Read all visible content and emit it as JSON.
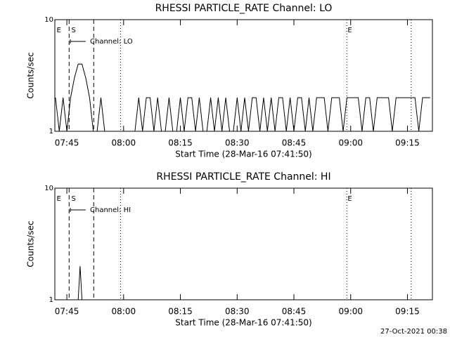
{
  "chart_data": [
    {
      "type": "line",
      "title": "RHESSI PARTICLE_RATE Channel: LO",
      "xlabel": "Start Time (28-Mar-16 07:41:50)",
      "ylabel": "Counts/sec",
      "log_y": true,
      "ylim": [
        1,
        10
      ],
      "yticks": [
        1,
        10
      ],
      "xlim": [
        461.83,
        561.6
      ],
      "xticks": [
        {
          "value": 465,
          "label": "07:45"
        },
        {
          "value": 480,
          "label": "08:00"
        },
        {
          "value": 495,
          "label": "08:15"
        },
        {
          "value": 510,
          "label": "08:30"
        },
        {
          "value": 525,
          "label": "08:45"
        },
        {
          "value": 540,
          "label": "09:00"
        },
        {
          "value": 555,
          "label": "09:15"
        }
      ],
      "legend": "upper left",
      "vlines": [
        {
          "x": 465.6,
          "style": "dashed"
        },
        {
          "x": 472.1,
          "style": "dashed"
        },
        {
          "x": 479.2,
          "style": "dotted"
        },
        {
          "x": 538.97,
          "style": "dotted"
        },
        {
          "x": 555.97,
          "style": "dotted"
        }
      ],
      "markers": [
        {
          "label": "E",
          "x": 462.3
        },
        {
          "label": "S",
          "x": 466.2
        },
        {
          "label": "E",
          "x": 539.2
        }
      ],
      "series": [
        {
          "name": "Channel: LO",
          "color": "#000000",
          "x": [
            462,
            463,
            464,
            465,
            466,
            467,
            468,
            469,
            470,
            471,
            472,
            473,
            474,
            475,
            476,
            477,
            478,
            479,
            480,
            481,
            482,
            483,
            484,
            485,
            486,
            487,
            488,
            489,
            490,
            491,
            492,
            493,
            494,
            495,
            496,
            497,
            498,
            499,
            500,
            501,
            502,
            503,
            504,
            505,
            506,
            507,
            508,
            509,
            510,
            511,
            512,
            513,
            514,
            515,
            516,
            517,
            518,
            519,
            520,
            521,
            522,
            523,
            524,
            525,
            526,
            527,
            528,
            529,
            530,
            531,
            532,
            533,
            534,
            535,
            536,
            537,
            538,
            539,
            540,
            541,
            542,
            543,
            544,
            545,
            546,
            547,
            548,
            549,
            550,
            551,
            552,
            553,
            554,
            555,
            556,
            557,
            558,
            559,
            560,
            561
          ],
          "values": [
            2,
            1,
            2,
            1,
            2,
            3,
            4,
            4,
            3,
            2,
            1,
            1,
            2,
            1,
            1,
            1,
            1,
            1,
            1,
            1,
            1,
            1,
            2,
            1,
            2,
            2,
            1,
            2,
            1,
            1,
            2,
            1,
            1,
            2,
            1,
            2,
            2,
            1,
            2,
            1,
            1,
            2,
            1,
            2,
            1,
            2,
            1,
            1,
            2,
            1,
            2,
            1,
            2,
            2,
            1,
            2,
            1,
            2,
            1,
            2,
            2,
            1,
            2,
            1,
            2,
            2,
            1,
            2,
            1,
            2,
            2,
            2,
            1,
            2,
            2,
            2,
            1,
            2,
            2,
            2,
            2,
            1,
            2,
            2,
            1,
            2,
            2,
            2,
            2,
            1,
            2,
            2,
            2,
            2,
            2,
            2,
            1,
            2,
            2,
            2
          ]
        }
      ]
    },
    {
      "type": "line",
      "title": "RHESSI PARTICLE_RATE Channel: HI",
      "xlabel": "Start Time (28-Mar-16 07:41:50)",
      "ylabel": "Counts/sec",
      "log_y": true,
      "ylim": [
        1,
        10
      ],
      "yticks": [
        1,
        10
      ],
      "xlim": [
        461.83,
        561.6
      ],
      "xticks": [
        {
          "value": 465,
          "label": "07:45"
        },
        {
          "value": 480,
          "label": "08:00"
        },
        {
          "value": 495,
          "label": "08:15"
        },
        {
          "value": 510,
          "label": "08:30"
        },
        {
          "value": 525,
          "label": "08:45"
        },
        {
          "value": 540,
          "label": "09:00"
        },
        {
          "value": 555,
          "label": "09:15"
        }
      ],
      "legend": "upper left",
      "vlines": [
        {
          "x": 465.6,
          "style": "dashed"
        },
        {
          "x": 472.1,
          "style": "dashed"
        },
        {
          "x": 479.2,
          "style": "dotted"
        },
        {
          "x": 538.97,
          "style": "dotted"
        },
        {
          "x": 555.97,
          "style": "dotted"
        }
      ],
      "markers": [
        {
          "label": "E",
          "x": 462.3
        },
        {
          "label": "S",
          "x": 466.2
        },
        {
          "label": "E",
          "x": 539.2
        }
      ],
      "series": [
        {
          "name": "Channel: HI",
          "color": "#000000",
          "x": [
            465.6,
            466.5,
            467.5,
            468,
            468.5,
            469,
            470,
            472
          ],
          "values": [
            1,
            1,
            1,
            1,
            2,
            1,
            1,
            1
          ]
        }
      ]
    }
  ],
  "footer": "27-Oct-2021 00:38"
}
